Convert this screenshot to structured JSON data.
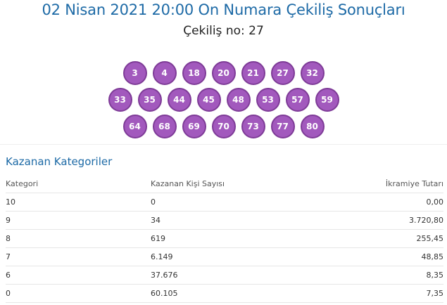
{
  "title": "02 Nisan 2021 20:00 On Numara Çekiliş Sonuçları",
  "draw_label": "Çekiliş no: 27",
  "balls": {
    "row1": [
      "3",
      "4",
      "18",
      "20",
      "21",
      "27",
      "32"
    ],
    "row2": [
      "33",
      "35",
      "44",
      "45",
      "48",
      "53",
      "57",
      "59"
    ],
    "row3": [
      "64",
      "68",
      "69",
      "70",
      "73",
      "77",
      "80"
    ]
  },
  "colors": {
    "title": "#1d6aa6",
    "ball_fill": "#a259bd",
    "ball_border": "#7e3b97"
  },
  "winners": {
    "heading": "Kazanan Kategoriler",
    "columns": [
      "Kategori",
      "Kazanan Kişi Sayısı",
      "İkramiye Tutarı"
    ],
    "rows": [
      [
        "10",
        "0",
        "0,00"
      ],
      [
        "9",
        "34",
        "3.720,80"
      ],
      [
        "8",
        "619",
        "255,45"
      ],
      [
        "7",
        "6.149",
        "48,85"
      ],
      [
        "6",
        "37.676",
        "8,35"
      ],
      [
        "0",
        "60.105",
        "7,35"
      ]
    ]
  }
}
